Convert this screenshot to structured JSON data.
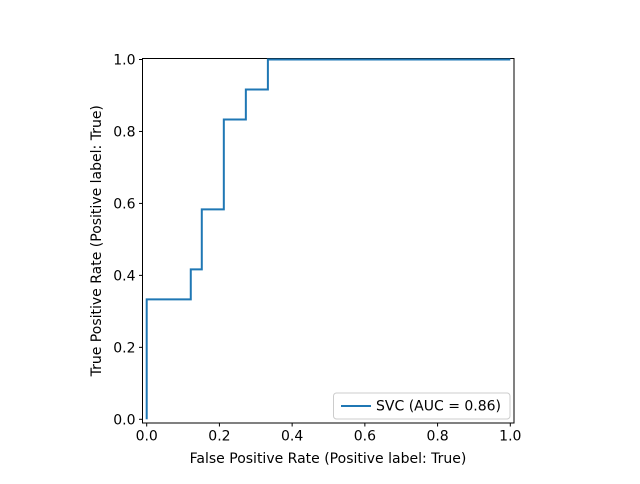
{
  "figure": {
    "background": "#ffffff",
    "axes_edge_color": "#000000",
    "legend_edge_color": "#cccccc",
    "legend_background": "#ffffff"
  },
  "chart_data": {
    "type": "line",
    "subtype": "roc-step-curve",
    "title": "",
    "xlabel": "False Positive Rate (Positive label: True)",
    "ylabel": "True Positive Rate (Positive label: True)",
    "xlim": [
      -0.01,
      1.01
    ],
    "ylim": [
      -0.01,
      1.01
    ],
    "grid": false,
    "x_ticks": [
      0.0,
      0.2,
      0.4,
      0.6,
      0.8,
      1.0
    ],
    "y_ticks": [
      0.0,
      0.2,
      0.4,
      0.6,
      0.8,
      1.0
    ],
    "x_tick_labels": [
      "0.0",
      "0.2",
      "0.4",
      "0.6",
      "0.8",
      "1.0"
    ],
    "y_tick_labels": [
      "0.0",
      "0.2",
      "0.4",
      "0.6",
      "0.8",
      "1.0"
    ],
    "legend": {
      "position": "lower right",
      "entries": [
        {
          "label": "SVC (AUC = 0.86)",
          "color": "#1f77b4"
        }
      ]
    },
    "series": [
      {
        "name": "SVC",
        "auc": 0.86,
        "color": "#1f77b4",
        "line_width": 2,
        "drawstyle": "steps-post",
        "points": [
          [
            0.0,
            0.0
          ],
          [
            0.0,
            0.3333
          ],
          [
            0.1212,
            0.3333
          ],
          [
            0.1212,
            0.4167
          ],
          [
            0.1515,
            0.4167
          ],
          [
            0.1515,
            0.5833
          ],
          [
            0.2121,
            0.5833
          ],
          [
            0.2121,
            0.8333
          ],
          [
            0.2727,
            0.8333
          ],
          [
            0.2727,
            0.9167
          ],
          [
            0.3333,
            0.9167
          ],
          [
            0.3333,
            1.0
          ],
          [
            1.0,
            1.0
          ]
        ]
      }
    ]
  }
}
